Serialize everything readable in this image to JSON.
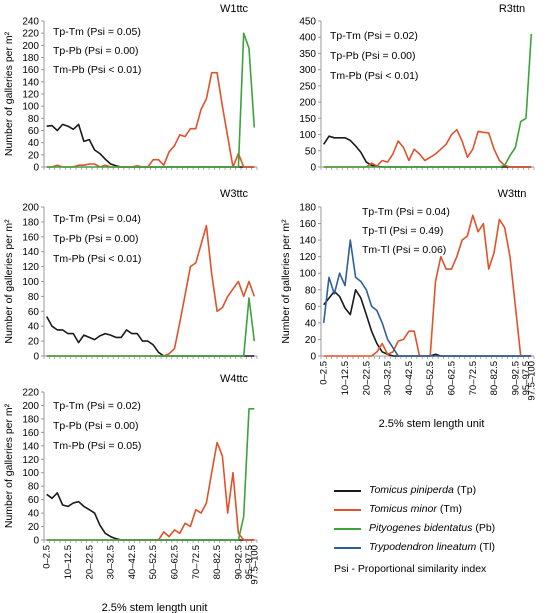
{
  "shared": {
    "categories": [
      "0–2.5",
      "2.5–5",
      "5–7.5",
      "7.5–10",
      "10–12.5",
      "12.5–15",
      "15–17.5",
      "17.5–20",
      "20–22.5",
      "22.5–25",
      "25–27.5",
      "27.5–30",
      "30–32.5",
      "32.5–35",
      "35–37.5",
      "37.5–40",
      "40–42.5",
      "42.5–45",
      "45–47.5",
      "47.5–50",
      "50–52.5",
      "52.5–55",
      "55–57.5",
      "57.5–60",
      "60–62.5",
      "62.5–65",
      "65–67.5",
      "67.5–70",
      "70–72.5",
      "72.5–75",
      "75–77.5",
      "77.5–80",
      "80–82.5",
      "82.5–85",
      "85–87.5",
      "87.5–90",
      "90–92.5",
      "92.5–95",
      "95–97.5",
      "97.5–100"
    ],
    "tick_labels": [
      "0–2.5",
      "10–12.5",
      "20–22.5",
      "30–32.5",
      "40–42.5",
      "50–52.5",
      "60–62.5",
      "70–72.5",
      "80–82.5",
      "90–92.5",
      "95–97.5",
      "97.5–100"
    ],
    "xlabel": "2.5% stem length unit",
    "ylabel_left": "Number of galleries per m²",
    "ylabel_right": "Number of galleries per m²",
    "colors": {
      "Tp": "#1a1a1a",
      "Tm": "#e0522a",
      "Pb": "#3ca33c",
      "Tl": "#2f5f99",
      "axis": "#999999"
    }
  },
  "chart_data": [
    {
      "type": "line",
      "title": "W1ttc",
      "ylim": [
        0,
        240
      ],
      "yticks": [
        0,
        20,
        40,
        60,
        80,
        100,
        120,
        140,
        160,
        180,
        200,
        220,
        240
      ],
      "annotations": [
        "Tp-Tm (Psi = 0.05)",
        "Tp-Pb (Psi = 0.00)",
        "Tm-Pb (Psi < 0.01)"
      ],
      "series": [
        {
          "name": "Tp",
          "values": [
            67,
            68,
            60,
            70,
            67,
            62,
            70,
            42,
            45,
            28,
            22,
            13,
            5,
            2,
            0,
            0,
            0,
            0,
            0,
            0,
            0,
            0,
            0,
            0,
            0,
            0,
            0,
            0,
            0,
            0,
            0,
            0,
            0,
            0,
            0,
            0,
            0,
            0,
            0,
            0
          ]
        },
        {
          "name": "Tm",
          "values": [
            0,
            0,
            3,
            0,
            0,
            0,
            3,
            3,
            5,
            5,
            0,
            3,
            0,
            0,
            0,
            0,
            0,
            2,
            0,
            0,
            12,
            12,
            3,
            25,
            35,
            53,
            50,
            63,
            63,
            95,
            112,
            155,
            155,
            100,
            50,
            0,
            22,
            0,
            0,
            0
          ]
        },
        {
          "name": "Pb",
          "values": [
            0,
            0,
            0,
            0,
            0,
            0,
            0,
            0,
            0,
            0,
            0,
            0,
            0,
            0,
            0,
            0,
            0,
            0,
            0,
            0,
            0,
            0,
            0,
            0,
            0,
            0,
            0,
            0,
            0,
            0,
            0,
            0,
            0,
            0,
            0,
            0,
            0,
            220,
            195,
            65
          ]
        }
      ]
    },
    {
      "type": "line",
      "title": "R3ttn",
      "ylim": [
        0,
        450
      ],
      "yticks": [
        0,
        50,
        100,
        150,
        200,
        250,
        300,
        350,
        400,
        450
      ],
      "annotations": [
        "Tp-Tm (Psi = 0.02)",
        "Tp-Pb (Psi = 0.00)",
        "Tm-Pb (Psi < 0.01)"
      ],
      "series": [
        {
          "name": "Tp",
          "values": [
            70,
            95,
            90,
            90,
            90,
            82,
            65,
            45,
            15,
            5,
            2,
            0,
            0,
            0,
            0,
            0,
            0,
            0,
            0,
            0,
            0,
            0,
            0,
            0,
            0,
            0,
            0,
            0,
            0,
            0,
            0,
            0,
            0,
            0,
            0,
            0,
            0,
            0,
            0,
            0
          ]
        },
        {
          "name": "Tm",
          "values": [
            0,
            0,
            0,
            0,
            0,
            0,
            0,
            0,
            0,
            12,
            3,
            20,
            15,
            40,
            80,
            60,
            20,
            55,
            40,
            20,
            30,
            40,
            55,
            70,
            100,
            115,
            80,
            30,
            55,
            110,
            107,
            105,
            55,
            20,
            5,
            0,
            0,
            0,
            0,
            0
          ]
        },
        {
          "name": "Pb",
          "values": [
            0,
            0,
            0,
            0,
            0,
            0,
            0,
            0,
            0,
            0,
            0,
            0,
            0,
            0,
            0,
            0,
            0,
            0,
            0,
            0,
            0,
            0,
            0,
            0,
            0,
            0,
            0,
            0,
            0,
            0,
            0,
            0,
            0,
            0,
            5,
            35,
            60,
            140,
            150,
            410
          ]
        }
      ]
    },
    {
      "type": "line",
      "title": "W3ttc",
      "ylim": [
        0,
        200
      ],
      "yticks": [
        0,
        20,
        40,
        60,
        80,
        100,
        120,
        140,
        160,
        180,
        200
      ],
      "annotations": [
        "Tp-Tm (Psi = 0.04)",
        "Tp-Pb (Psi = 0.00)",
        "Tm-Pb (Psi < 0.01)"
      ],
      "series": [
        {
          "name": "Tp",
          "values": [
            53,
            40,
            35,
            35,
            30,
            30,
            18,
            28,
            25,
            22,
            27,
            30,
            28,
            25,
            25,
            35,
            30,
            30,
            20,
            20,
            15,
            5,
            0,
            0,
            0,
            0,
            0,
            0,
            0,
            0,
            0,
            0,
            0,
            0,
            0,
            0,
            0,
            0,
            0,
            0
          ]
        },
        {
          "name": "Tm",
          "values": [
            0,
            0,
            0,
            0,
            0,
            0,
            0,
            0,
            0,
            0,
            0,
            0,
            0,
            0,
            0,
            0,
            0,
            0,
            0,
            0,
            0,
            0,
            0,
            3,
            10,
            45,
            82,
            120,
            125,
            150,
            175,
            110,
            60,
            65,
            80,
            90,
            100,
            80,
            100,
            80
          ]
        },
        {
          "name": "Pb",
          "values": [
            0,
            0,
            0,
            0,
            0,
            0,
            0,
            0,
            0,
            0,
            0,
            0,
            0,
            0,
            0,
            0,
            0,
            0,
            0,
            0,
            0,
            0,
            0,
            0,
            0,
            0,
            0,
            0,
            0,
            0,
            0,
            0,
            0,
            0,
            0,
            0,
            0,
            0,
            78,
            20
          ]
        }
      ]
    },
    {
      "type": "line",
      "title": "W3ttn",
      "ylim": [
        0,
        180
      ],
      "yticks": [
        0,
        20,
        40,
        60,
        80,
        100,
        120,
        140,
        160,
        180
      ],
      "annotations": [
        "Tp-Tm (Psi = 0.04)",
        "Tp-Tl (Psi = 0.49)",
        "Tm-Tl (Psi = 0.06)"
      ],
      "series": [
        {
          "name": "Tp",
          "values": [
            62,
            70,
            78,
            72,
            58,
            50,
            80,
            70,
            50,
            30,
            15,
            5,
            2,
            0,
            0,
            0,
            0,
            0,
            0,
            0,
            0,
            2,
            0,
            0,
            0,
            0,
            0,
            0,
            0,
            0,
            0,
            0,
            0,
            0,
            0,
            0,
            0,
            0,
            0,
            0
          ]
        },
        {
          "name": "Tm",
          "values": [
            0,
            0,
            0,
            0,
            0,
            0,
            0,
            0,
            0,
            0,
            5,
            15,
            2,
            5,
            18,
            20,
            30,
            30,
            0,
            0,
            0,
            90,
            120,
            105,
            105,
            120,
            140,
            145,
            170,
            150,
            160,
            105,
            125,
            165,
            155,
            120,
            60,
            0,
            0,
            0
          ]
        },
        {
          "name": "Tl",
          "values": [
            40,
            95,
            75,
            100,
            85,
            140,
            95,
            90,
            80,
            60,
            55,
            40,
            20,
            10,
            0,
            0,
            0,
            0,
            0,
            0,
            0,
            0,
            0,
            0,
            0,
            0,
            0,
            0,
            0,
            0,
            0,
            0,
            0,
            0,
            0,
            0,
            0,
            0,
            0,
            0
          ]
        }
      ]
    },
    {
      "type": "line",
      "title": "W4ttc",
      "ylim": [
        0,
        220
      ],
      "yticks": [
        0,
        20,
        40,
        60,
        80,
        100,
        120,
        140,
        160,
        180,
        200,
        220
      ],
      "annotations": [
        "Tp-Tm (Psi = 0.02)",
        "Tp-Pb (Psi = 0.00)",
        "Tm-Pb (Psi = 0.05)"
      ],
      "series": [
        {
          "name": "Tp",
          "values": [
            68,
            62,
            70,
            52,
            50,
            55,
            57,
            50,
            45,
            40,
            22,
            10,
            5,
            2,
            0,
            0,
            0,
            0,
            0,
            0,
            0,
            0,
            0,
            0,
            0,
            0,
            0,
            0,
            0,
            0,
            0,
            0,
            0,
            0,
            0,
            0,
            0,
            0,
            0,
            0
          ]
        },
        {
          "name": "Tm",
          "values": [
            0,
            0,
            0,
            0,
            0,
            0,
            0,
            0,
            0,
            0,
            0,
            0,
            0,
            0,
            0,
            0,
            0,
            0,
            0,
            0,
            0,
            0,
            12,
            5,
            15,
            10,
            25,
            20,
            45,
            40,
            55,
            100,
            145,
            125,
            40,
            100,
            10,
            0,
            0,
            0
          ]
        },
        {
          "name": "Pb",
          "values": [
            0,
            0,
            0,
            0,
            0,
            0,
            0,
            0,
            0,
            0,
            0,
            0,
            0,
            0,
            0,
            0,
            0,
            0,
            0,
            0,
            0,
            0,
            0,
            0,
            0,
            0,
            0,
            0,
            0,
            0,
            0,
            0,
            0,
            0,
            0,
            0,
            0,
            35,
            195,
            195
          ]
        }
      ]
    }
  ],
  "legend": {
    "items": [
      {
        "key": "Tp",
        "name": "Tomicus piniperda",
        "abbr": "(Tp)"
      },
      {
        "key": "Tm",
        "name": "Tomicus minor",
        "abbr": "(Tm)"
      },
      {
        "key": "Pb",
        "name": "Pityogenes bidentatus",
        "abbr": "(Pb)"
      },
      {
        "key": "Tl",
        "name": "Trypodendron lineatum",
        "abbr": "(Tl)"
      }
    ],
    "note": "Psi - Proportional similarity index"
  }
}
